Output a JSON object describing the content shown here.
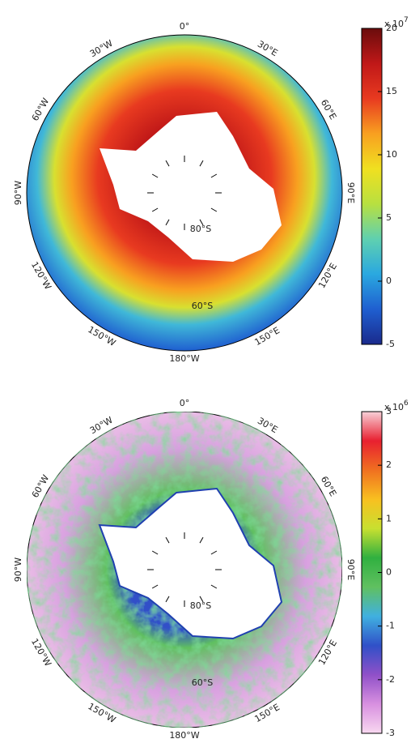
{
  "maps": [
    {
      "lon_labels": [
        "0°",
        "30°E",
        "60°E",
        "90°E",
        "120°E",
        "150°E",
        "180°W",
        "150°W",
        "120°W",
        "90°W",
        "60°W",
        "30°W"
      ],
      "lat_labels": [
        "80°S",
        "60°S"
      ],
      "colorbar": {
        "lim": [
          -5,
          20
        ],
        "ticks": [
          -5,
          0,
          5,
          10,
          15,
          20
        ],
        "multiplier": "x 10",
        "exponent": "7",
        "colors": [
          "#1a2a8c",
          "#1f5fd0",
          "#2aa8e0",
          "#5fd0b0",
          "#b8e040",
          "#f0e020",
          "#f8a020",
          "#e83a20",
          "#c01818",
          "#6a0c0c"
        ]
      }
    },
    {
      "lon_labels": [
        "0°",
        "30°E",
        "60°E",
        "90°E",
        "120°E",
        "150°E",
        "180°W",
        "150°W",
        "120°W",
        "90°W",
        "60°W",
        "30°W"
      ],
      "lat_labels": [
        "80°S",
        "60°S"
      ],
      "colorbar": {
        "lim": [
          -3,
          3
        ],
        "ticks": [
          -3,
          -2,
          -1,
          0,
          1,
          2,
          3
        ],
        "multiplier": "x 10",
        "exponent": "6",
        "colors": [
          "#f8d8f0",
          "#d890e0",
          "#9050c8",
          "#3050c8",
          "#40b0e0",
          "#60c060",
          "#30b040",
          "#c8e030",
          "#f8c020",
          "#f07020",
          "#e82030",
          "#f8d0d8"
        ]
      }
    }
  ]
}
